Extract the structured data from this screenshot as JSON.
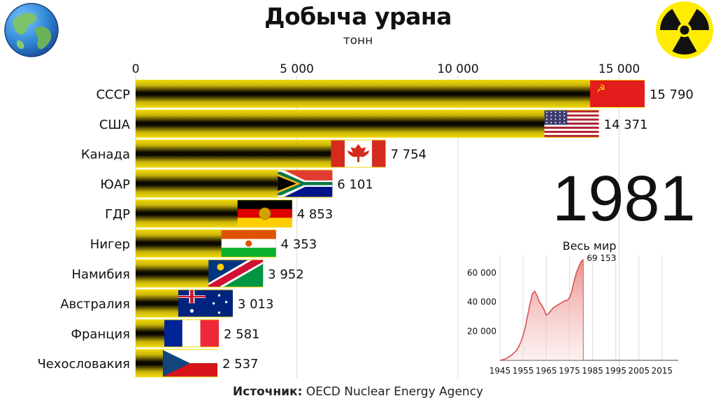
{
  "header": {
    "title": "Добыча урана",
    "subtitle": "тонн"
  },
  "year": "1981",
  "source": {
    "label": "Источник:",
    "text": "OECD Nuclear Energy Agency"
  },
  "logos": {
    "left": "globe-icon",
    "right": "radiation-icon"
  },
  "colors": {
    "bar_band": "#f2dc0c",
    "bar_dark": "#0b0900",
    "chart_line": "#d9534f",
    "chart_fill": "#e89a98"
  },
  "chart_data": [
    {
      "type": "bar",
      "orientation": "horizontal",
      "xlim": [
        0,
        16000
      ],
      "x_ticks": [
        0,
        5000,
        10000,
        15000
      ],
      "x_tick_labels": [
        "0",
        "5 000",
        "10 000",
        "15 000"
      ],
      "categories": [
        "СССР",
        "США",
        "Канада",
        "ЮАР",
        "ГДР",
        "Нигер",
        "Намибия",
        "Австралия",
        "Франция",
        "Чехословакия"
      ],
      "values": [
        15790,
        14371,
        7754,
        6101,
        4853,
        4353,
        3952,
        3013,
        2581,
        2537
      ],
      "value_labels": [
        "15 790",
        "14 371",
        "7 754",
        "6 101",
        "4 853",
        "4 353",
        "3 952",
        "3 013",
        "2 581",
        "2 537"
      ],
      "flags": [
        "flag-ussr-icon",
        "flag-usa-icon",
        "flag-canada-icon",
        "flag-south-africa-icon",
        "flag-gdr-icon",
        "flag-niger-icon",
        "flag-namibia-icon",
        "flag-australia-icon",
        "flag-france-icon",
        "flag-czechoslovakia-icon"
      ],
      "grid": true
    },
    {
      "type": "area",
      "title": "Весь мир",
      "xlim": [
        1945,
        2022
      ],
      "ylim": [
        0,
        72000
      ],
      "x_ticks": [
        1945,
        1955,
        1965,
        1975,
        1985,
        1995,
        2005,
        2015
      ],
      "x_tick_labels": [
        "1945",
        "1955",
        "1965",
        "1975",
        "1985",
        "1995",
        "2005",
        "2015"
      ],
      "y_ticks": [
        20000,
        40000,
        60000
      ],
      "y_tick_labels": [
        "20 000",
        "40 000",
        "60 000"
      ],
      "x": [
        1945,
        1946,
        1947,
        1948,
        1949,
        1950,
        1951,
        1952,
        1953,
        1954,
        1955,
        1956,
        1957,
        1958,
        1959,
        1960,
        1961,
        1962,
        1963,
        1964,
        1965,
        1966,
        1967,
        1968,
        1969,
        1970,
        1971,
        1972,
        1973,
        1974,
        1975,
        1976,
        1977,
        1978,
        1979,
        1980,
        1981
      ],
      "y": [
        0,
        300,
        800,
        1500,
        2500,
        3500,
        5000,
        6500,
        9000,
        12500,
        17000,
        23000,
        31000,
        39000,
        45500,
        47500,
        44500,
        40000,
        38000,
        35000,
        31000,
        32000,
        34000,
        36000,
        37000,
        38000,
        39000,
        40000,
        41000,
        41000,
        43000,
        47000,
        54000,
        60000,
        64000,
        67500,
        69153
      ],
      "end_label": "69 153",
      "grid": true
    }
  ]
}
